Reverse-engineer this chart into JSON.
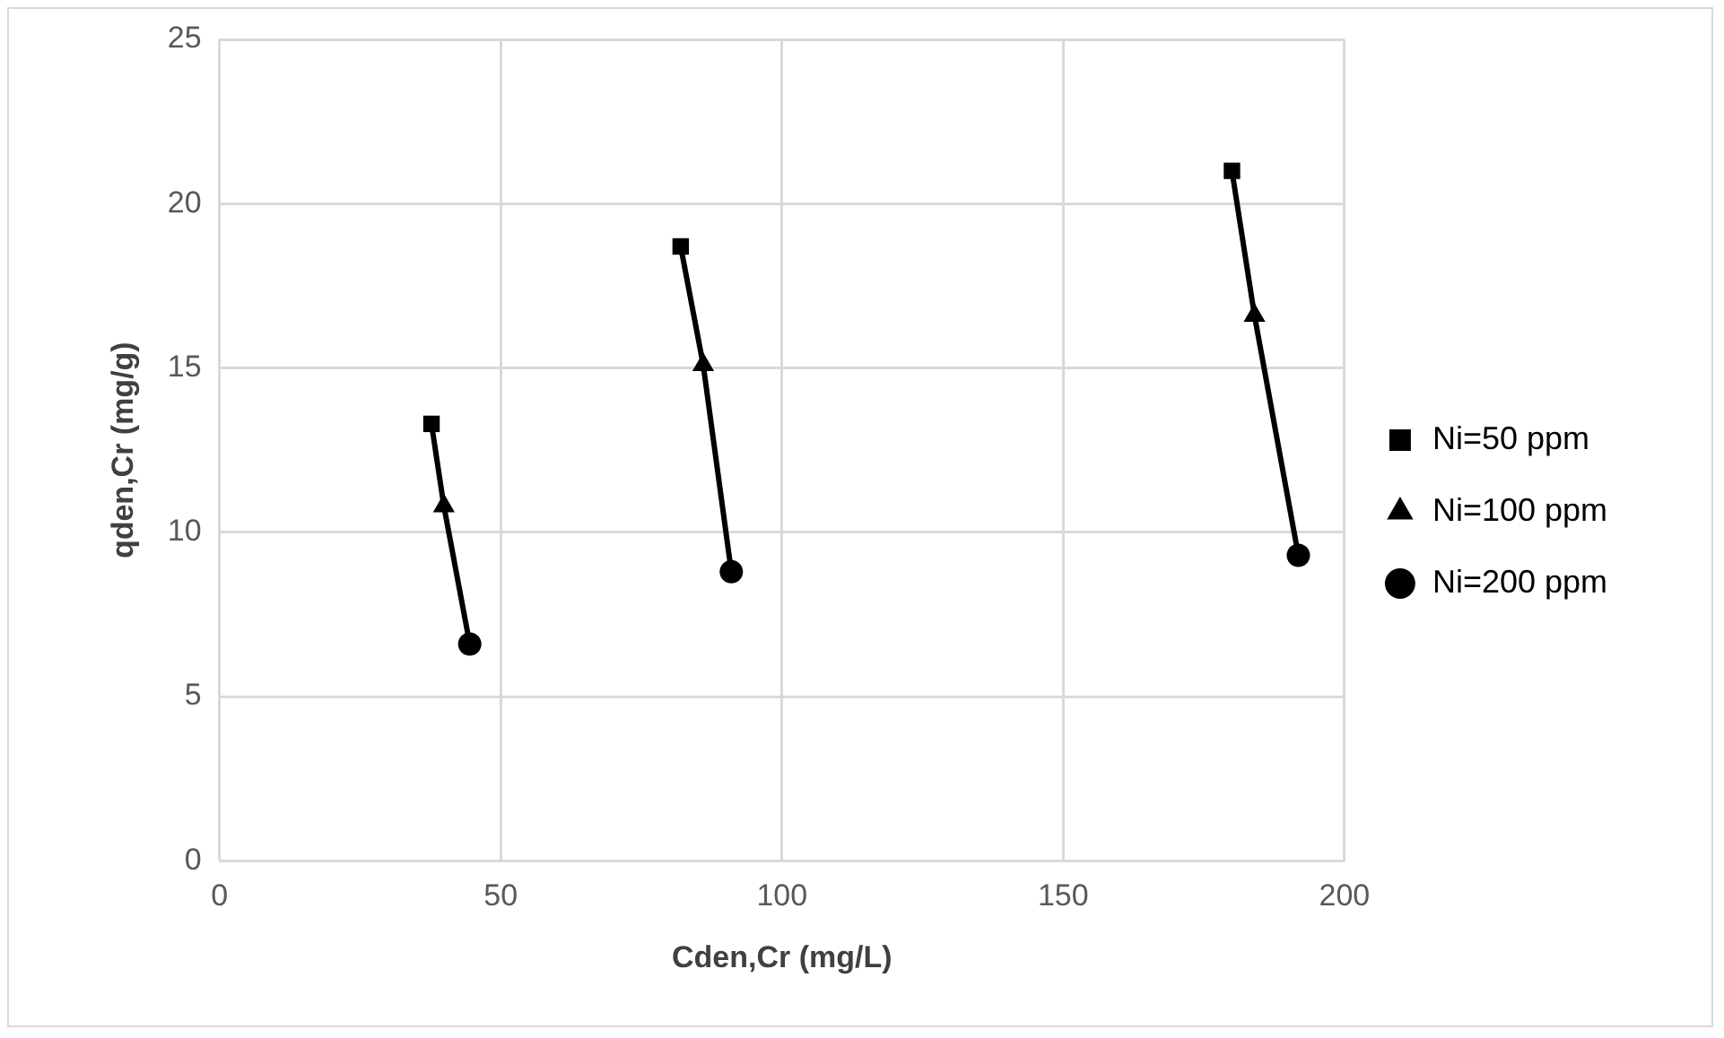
{
  "chart_data": {
    "type": "scatter",
    "xlabel": "Cden,Cr (mg/L)",
    "ylabel": "qden,Cr (mg/g)",
    "xlim": [
      0,
      200
    ],
    "xticks": [
      0,
      50,
      100,
      150,
      200
    ],
    "ylim": [
      0,
      25
    ],
    "yticks": [
      0,
      5,
      10,
      15,
      20,
      25
    ],
    "grid": true,
    "legend": "right",
    "line_style": "solid",
    "series": [
      {
        "type": "line",
        "color": "#000000",
        "marker": "none",
        "x": [
          37.7,
          39.9,
          44.5
        ],
        "values": [
          13.3,
          10.8,
          6.6
        ]
      },
      {
        "type": "line",
        "color": "#000000",
        "marker": "none",
        "x": [
          82,
          86,
          91
        ],
        "values": [
          18.7,
          15.1,
          8.8
        ]
      },
      {
        "type": "line",
        "color": "#000000",
        "marker": "none",
        "x": [
          180,
          184,
          191.8
        ],
        "values": [
          21.0,
          16.6,
          9.3
        ]
      },
      {
        "name": "Ni=50 ppm",
        "color": "#000000",
        "marker": "square",
        "x": [
          37.7,
          82,
          180
        ],
        "values": [
          13.3,
          18.7,
          21.0
        ]
      },
      {
        "name": "Ni=100 ppm",
        "color": "#000000",
        "marker": "triangle",
        "x": [
          39.9,
          86,
          184
        ],
        "values": [
          10.8,
          15.1,
          16.6
        ]
      },
      {
        "name": "Ni=200 ppm",
        "color": "#000000",
        "marker": "circle",
        "x": [
          44.5,
          91,
          191.8
        ],
        "values": [
          6.6,
          8.8,
          9.3
        ]
      }
    ]
  }
}
